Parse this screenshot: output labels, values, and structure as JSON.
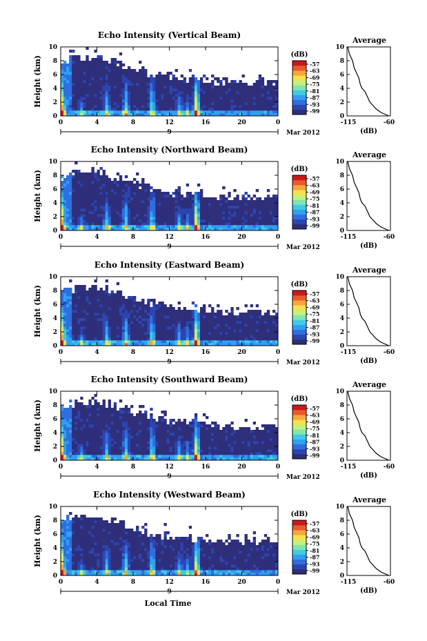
{
  "xlabel": "Local Time",
  "colorbar_unit": "(dB)",
  "colorbar_ticks": [
    "-57",
    "-63",
    "-69",
    "-75",
    "-81",
    "-87",
    "-93",
    "-99"
  ],
  "colorscale": [
    "#2e2e7a",
    "#2c45b0",
    "#2f6ee0",
    "#2fa0f2",
    "#3ecbe6",
    "#7fe6b0",
    "#c5f07a",
    "#f5e14a",
    "#f6a63a",
    "#ec5a2a",
    "#c9191e"
  ],
  "profile_title": "Average",
  "profile_xticks": [
    "-115",
    "-60"
  ],
  "profile_xlabel": "(dB)",
  "date_label": "Mar 2012",
  "day_label": "9",
  "panels": [
    {
      "title": "Echo Intensity (Vertical Beam)"
    },
    {
      "title": "Echo Intensity (Northward Beam)"
    },
    {
      "title": "Echo Intensity (Eastward Beam)"
    },
    {
      "title": "Echo Intensity (Southward Beam)"
    },
    {
      "title": "Echo Intensity (Westward Beam)"
    }
  ],
  "chart_data": {
    "type": "heatmap",
    "ylabel": "Height (km)",
    "xlabel": "Local Time",
    "x_ticks": [
      "0",
      "4",
      "8",
      "12",
      "16",
      "20",
      "0"
    ],
    "xlim": [
      0,
      24
    ],
    "y_ticks": [
      "0",
      "2",
      "4",
      "6",
      "8",
      "10"
    ],
    "ylim": [
      0,
      10
    ],
    "colorbar_range_db": [
      -99,
      -57
    ],
    "profile_xlim": [
      -115,
      -60
    ],
    "average_profile": {
      "height_km": [
        0,
        0.5,
        1,
        1.5,
        2,
        2.5,
        3,
        3.5,
        4,
        4.5,
        5,
        5.5,
        6,
        6.5,
        7,
        7.5,
        8,
        8.5,
        9,
        9.5,
        10
      ],
      "db": [
        -62,
        -72,
        -78,
        -82,
        -86,
        -88,
        -90,
        -92,
        -96,
        -98,
        -99,
        -100,
        -102,
        -104,
        -106,
        -107,
        -108,
        -110,
        -112,
        -113,
        -114
      ]
    }
  }
}
